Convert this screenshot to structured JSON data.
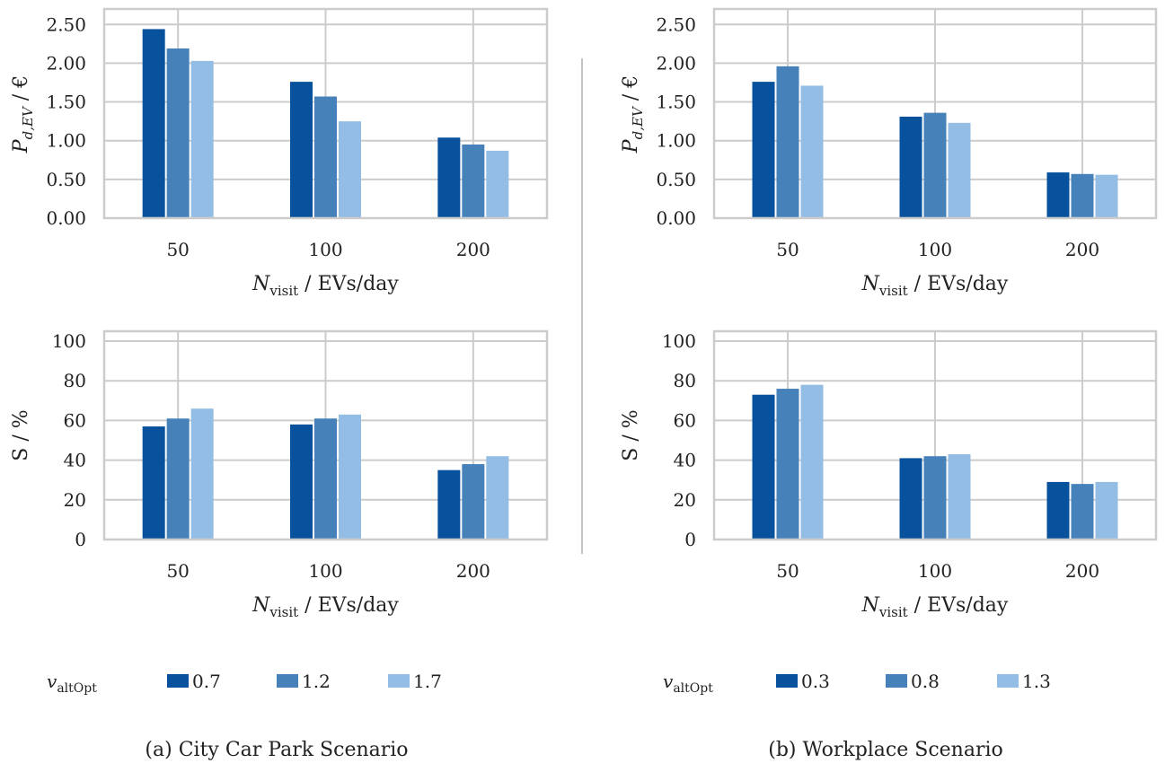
{
  "colors": {
    "c1": "#08519c",
    "c2": "#4682b9",
    "c3": "#94bde6",
    "grid": "#cccccc",
    "divider": "#888888"
  },
  "panels": [
    {
      "caption": "(a) City Car Park Scenario",
      "legend": {
        "symbol": "v",
        "subscript": "altOpt",
        "labels": [
          "0.7",
          "1.2",
          "1.7"
        ]
      },
      "xlabel": {
        "symbol": "N",
        "subscript": "visit",
        "rest": " / EVs/day"
      }
    },
    {
      "caption": "(b) Workplace Scenario",
      "legend": {
        "symbol": "v",
        "subscript": "altOpt",
        "labels": [
          "0.3",
          "0.8",
          "1.3"
        ]
      },
      "xlabel": {
        "symbol": "N",
        "subscript": "visit",
        "rest": " / EVs/day"
      }
    }
  ],
  "chart_data": [
    {
      "type": "bar",
      "panel": "a-top",
      "categories": [
        "50",
        "100",
        "200"
      ],
      "series": [
        {
          "name": "0.7",
          "values": [
            2.44,
            1.76,
            1.04
          ]
        },
        {
          "name": "1.2",
          "values": [
            2.19,
            1.57,
            0.95
          ]
        },
        {
          "name": "1.7",
          "values": [
            2.03,
            1.25,
            0.87
          ]
        }
      ],
      "ylabel": "P_{d,EV} / €",
      "ylim": [
        0,
        2.7
      ],
      "yticks": [
        "0.00",
        "0.50",
        "1.00",
        "1.50",
        "2.00",
        "2.50"
      ],
      "grid": true
    },
    {
      "type": "bar",
      "panel": "b-top",
      "categories": [
        "50",
        "100",
        "200"
      ],
      "series": [
        {
          "name": "0.3",
          "values": [
            1.76,
            1.31,
            0.59
          ]
        },
        {
          "name": "0.8",
          "values": [
            1.96,
            1.36,
            0.57
          ]
        },
        {
          "name": "1.3",
          "values": [
            1.71,
            1.23,
            0.56
          ]
        }
      ],
      "ylabel": "P_{d,EV} / €",
      "ylim": [
        0,
        2.7
      ],
      "yticks": [
        "0.00",
        "0.50",
        "1.00",
        "1.50",
        "2.00",
        "2.50"
      ],
      "grid": true
    },
    {
      "type": "bar",
      "panel": "a-bottom",
      "categories": [
        "50",
        "100",
        "200"
      ],
      "series": [
        {
          "name": "0.7",
          "values": [
            57,
            58,
            35
          ]
        },
        {
          "name": "1.2",
          "values": [
            61,
            61,
            38
          ]
        },
        {
          "name": "1.7",
          "values": [
            66,
            63,
            42
          ]
        }
      ],
      "ylabel": "S / %",
      "ylim": [
        0,
        105
      ],
      "yticks": [
        "0",
        "20",
        "40",
        "60",
        "80",
        "100"
      ],
      "grid": true
    },
    {
      "type": "bar",
      "panel": "b-bottom",
      "categories": [
        "50",
        "100",
        "200"
      ],
      "series": [
        {
          "name": "0.3",
          "values": [
            73,
            41,
            29
          ]
        },
        {
          "name": "0.8",
          "values": [
            76,
            42,
            28
          ]
        },
        {
          "name": "1.3",
          "values": [
            78,
            43,
            29
          ]
        }
      ],
      "ylabel": "S / %",
      "ylim": [
        0,
        105
      ],
      "yticks": [
        "0",
        "20",
        "40",
        "60",
        "80",
        "100"
      ],
      "grid": true
    }
  ]
}
